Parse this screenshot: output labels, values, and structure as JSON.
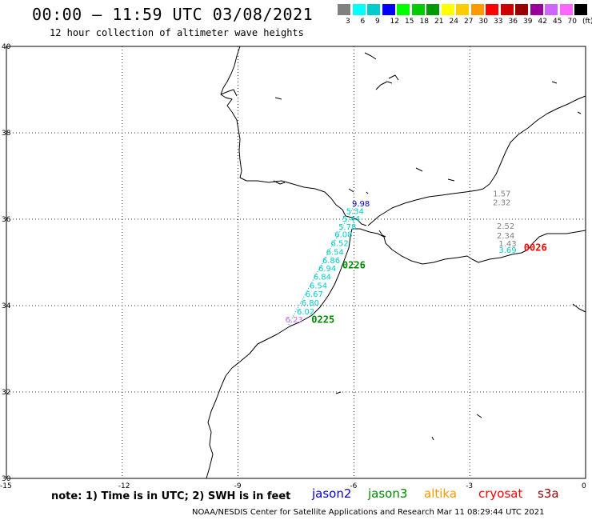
{
  "header": {
    "title": "00:00 – 11:59 UTC 03/08/2021",
    "subtitle": "12 hour collection of altimeter wave heights"
  },
  "colorbar": {
    "colors": [
      "#808080",
      "#00ffff",
      "#00cccc",
      "#0000ff",
      "#00ff00",
      "#00cc00",
      "#009900",
      "#ffff00",
      "#ffcc00",
      "#ff9900",
      "#ff0000",
      "#cc0000",
      "#990000",
      "#990099",
      "#cc66ff",
      "#ff66ff",
      "#000000"
    ],
    "labels": [
      "3",
      "6",
      "9",
      "12",
      "15",
      "18",
      "21",
      "24",
      "27",
      "30",
      "33",
      "36",
      "39",
      "42",
      "45",
      "70",
      "(ft)"
    ]
  },
  "axes": {
    "lat_labels": [
      "40",
      "38",
      "36",
      "34",
      "32",
      "30"
    ],
    "lon_labels": [
      "-15",
      "-12",
      "-9",
      "-6",
      "-3",
      "0"
    ]
  },
  "wave_labels": [
    {
      "text": "9.98",
      "lon": -6.05,
      "lat": 36.3,
      "color": "#0000cc"
    },
    {
      "text": "5.34",
      "lon": -6.2,
      "lat": 36.12,
      "color": "#00cccc"
    },
    {
      "text": "5.44",
      "lon": -6.3,
      "lat": 35.94,
      "color": "#00cccc"
    },
    {
      "text": "5.78",
      "lon": -6.4,
      "lat": 35.76,
      "color": "#00cccc"
    },
    {
      "text": "6.08",
      "lon": -6.5,
      "lat": 35.58,
      "color": "#00cccc"
    },
    {
      "text": "6.52",
      "lon": -6.6,
      "lat": 35.38,
      "color": "#00cccc"
    },
    {
      "text": "6.54",
      "lon": -6.72,
      "lat": 35.18,
      "color": "#00cccc"
    },
    {
      "text": "6.86",
      "lon": -6.82,
      "lat": 34.98,
      "color": "#00cccc"
    },
    {
      "text": "6.94",
      "lon": -6.92,
      "lat": 34.8,
      "color": "#00cccc"
    },
    {
      "text": "6.84",
      "lon": -7.05,
      "lat": 34.6,
      "color": "#00cccc"
    },
    {
      "text": "6.54",
      "lon": -7.15,
      "lat": 34.4,
      "color": "#00cccc"
    },
    {
      "text": "6.67",
      "lon": -7.26,
      "lat": 34.2,
      "color": "#00cccc"
    },
    {
      "text": "6.80",
      "lon": -7.36,
      "lat": 34.0,
      "color": "#00cccc"
    },
    {
      "text": "6.02",
      "lon": -7.48,
      "lat": 33.8,
      "color": "#00cccc"
    },
    {
      "text": "6.23",
      "lon": -7.78,
      "lat": 33.61,
      "color": "#cc66ff"
    },
    {
      "text": "1.57",
      "lon": -2.4,
      "lat": 36.53,
      "color": "#808080"
    },
    {
      "text": "2.32",
      "lon": -2.4,
      "lat": 36.32,
      "color": "#808080"
    },
    {
      "text": "2.52",
      "lon": -2.3,
      "lat": 35.78,
      "color": "#808080"
    },
    {
      "text": "2.34",
      "lon": -2.3,
      "lat": 35.56,
      "color": "#808080"
    },
    {
      "text": "1.43",
      "lon": -2.25,
      "lat": 35.37,
      "color": "#808080"
    },
    {
      "text": "3.69",
      "lon": -2.25,
      "lat": 35.22,
      "color": "#00cccc"
    }
  ],
  "pass_labels": [
    {
      "text": "0226",
      "lon": -6.3,
      "lat": 34.86,
      "color": "#008800"
    },
    {
      "text": "0225",
      "lon": -7.1,
      "lat": 33.6,
      "color": "#008800"
    },
    {
      "text": "0026",
      "lon": -1.6,
      "lat": 35.27,
      "color": "#ff0000"
    }
  ],
  "footer": {
    "note": "note: 1) Time is in UTC; 2) SWH is in feet",
    "satellites": [
      {
        "name": "jason2",
        "color": "#0000cc"
      },
      {
        "name": "jason3",
        "color": "#008800"
      },
      {
        "name": "altika",
        "color": "#ff9900"
      },
      {
        "name": "cryosat",
        "color": "#ff0000"
      },
      {
        "name": "s3a",
        "color": "#990000"
      }
    ],
    "credit": "NOAA/NESDIS Center for Satellite Applications and Research   Mar 11 08:29:44 UTC 2021"
  }
}
